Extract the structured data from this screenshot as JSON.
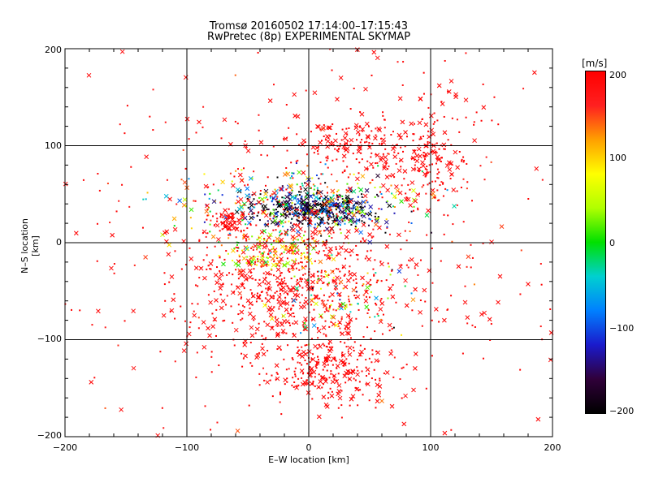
{
  "chart_data": {
    "type": "scatter",
    "title": "Tromsø 20160502 17:14:00–17:15:43",
    "subtitle": "RwPretec (8p) EXPERIMENTAL SKYMAP",
    "xlabel": "E–W location [km]",
    "ylabel": "N–S location [km]",
    "xlim": [
      -200,
      200
    ],
    "ylim": [
      -200,
      200
    ],
    "xticks": [
      "−200",
      "−100",
      "0",
      "100",
      "200"
    ],
    "yticks": [
      "200",
      "100",
      "0",
      "−100",
      "−200"
    ],
    "grid": true,
    "colorbar": {
      "unit": "[m/s]",
      "range": [
        -200,
        200
      ],
      "ticks": [
        "200",
        "100",
        "0",
        "−100",
        "−200"
      ],
      "colors": [
        "#000000",
        "#30003a",
        "#1a1acc",
        "#0080ff",
        "#00d0d0",
        "#00e000",
        "#b0ff00",
        "#ffff00",
        "#ffa000",
        "#ff2020",
        "#ff0000"
      ]
    },
    "marker_types": [
      "cross",
      "dot"
    ],
    "clusters": [
      {
        "x": 5,
        "y": 35,
        "sx": 25,
        "sy": 9,
        "n": 420,
        "v": -170,
        "vs": 60
      },
      {
        "x": -10,
        "y": 40,
        "sx": 50,
        "sy": 18,
        "n": 320,
        "v": 30,
        "vs": 110
      },
      {
        "x": -15,
        "y": -40,
        "sx": 40,
        "sy": 35,
        "n": 600,
        "v": 195,
        "vs": 15
      },
      {
        "x": 15,
        "y": -130,
        "sx": 25,
        "sy": 18,
        "n": 260,
        "v": 195,
        "vs": 10
      },
      {
        "x": 35,
        "y": 100,
        "sx": 25,
        "sy": 15,
        "n": 160,
        "v": 195,
        "vs": 10
      },
      {
        "x": 95,
        "y": 80,
        "sx": 15,
        "sy": 22,
        "n": 140,
        "v": 195,
        "vs": 15
      },
      {
        "x": -65,
        "y": 20,
        "sx": 6,
        "sy": 6,
        "n": 60,
        "v": 195,
        "vs": 10
      },
      {
        "x": -30,
        "y": -10,
        "sx": 20,
        "sy": 10,
        "n": 150,
        "v": 80,
        "vs": 50
      },
      {
        "x": 30,
        "y": -60,
        "sx": 25,
        "sy": 20,
        "n": 90,
        "v": 60,
        "vs": 120
      },
      {
        "x": 0,
        "y": 0,
        "sx": 120,
        "sy": 110,
        "n": 520,
        "v": 190,
        "vs": 25
      },
      {
        "x": 110,
        "y": 140,
        "sx": 20,
        "sy": 20,
        "n": 35,
        "v": 195,
        "vs": 10
      }
    ]
  }
}
